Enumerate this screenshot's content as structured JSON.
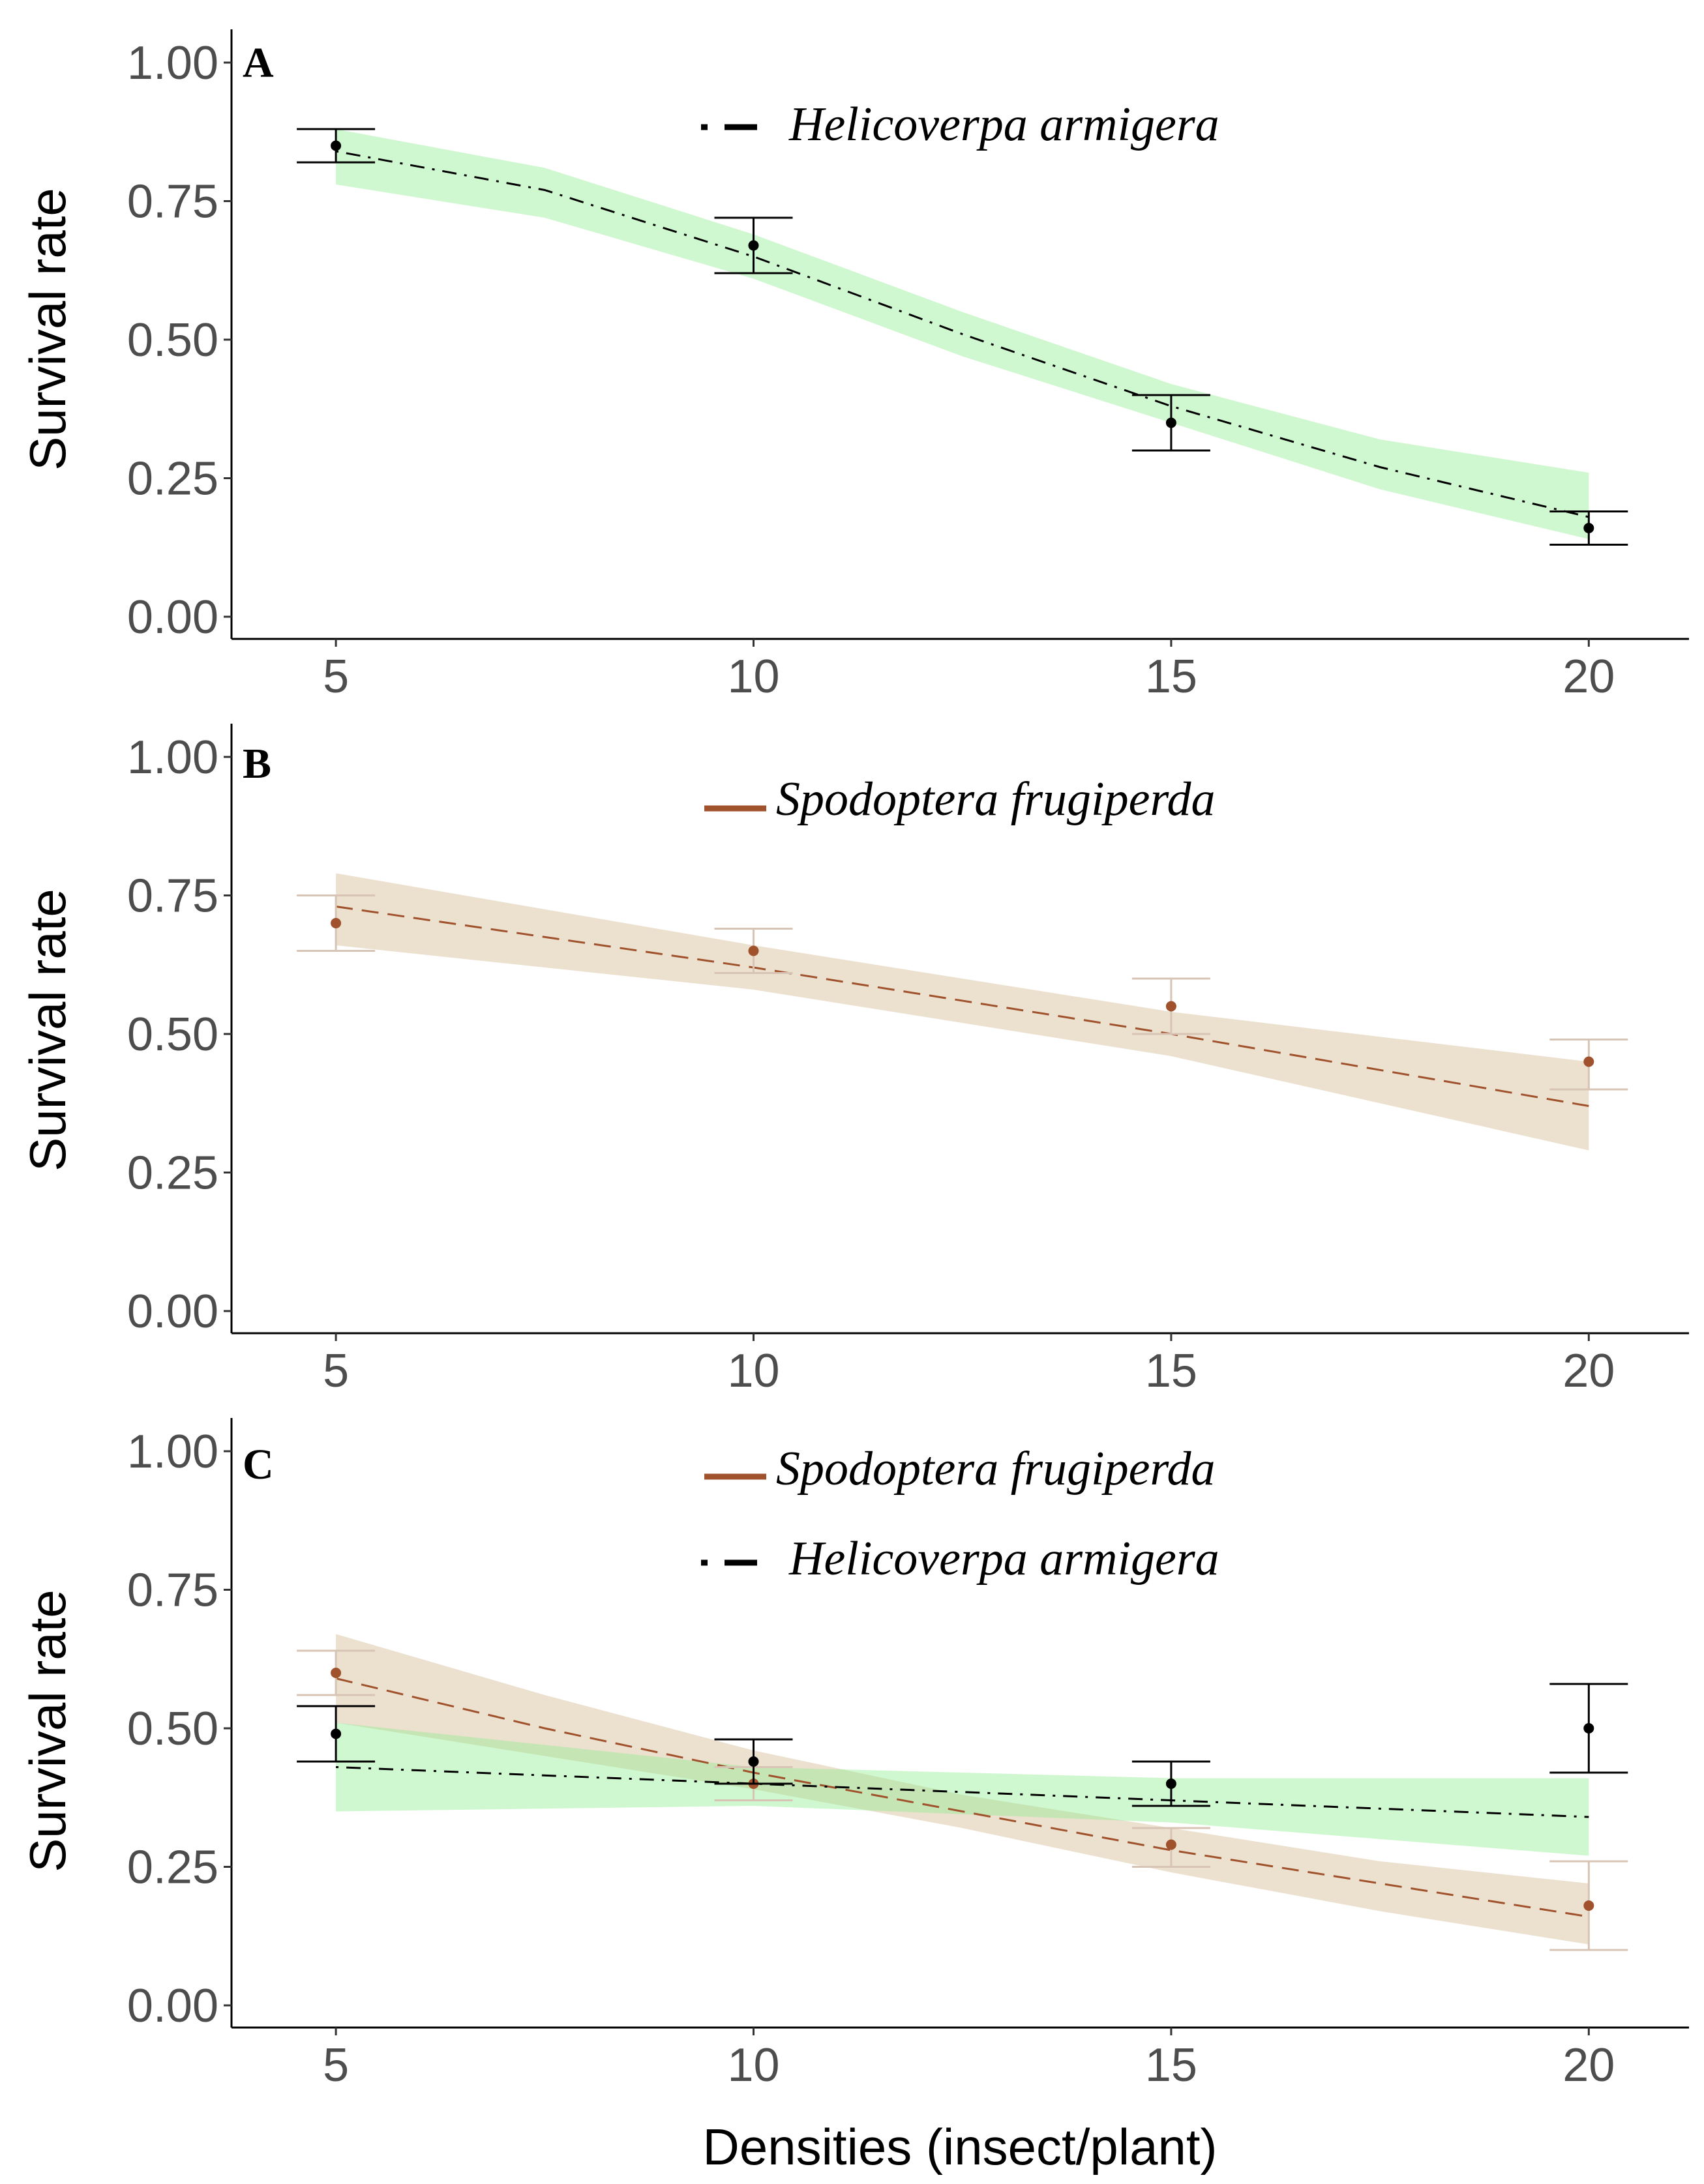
{
  "chart_data": [
    {
      "type": "line",
      "panel": "A",
      "xlabel": "",
      "ylabel": "Survival rate",
      "xlim": [
        3.75,
        21.2
      ],
      "ylim": [
        -0.04,
        1.06
      ],
      "xticks": [
        5,
        10,
        15,
        20
      ],
      "yticks": [
        0.0,
        0.25,
        0.5,
        0.75,
        1.0
      ],
      "xtick_labels": [
        "5",
        "10",
        "15",
        "20"
      ],
      "ytick_labels": [
        "0.00",
        "0.25",
        "0.50",
        "0.75",
        "1.00"
      ],
      "grid": false,
      "legend_position": "top-center",
      "series": [
        {
          "name": "Helicoverpa armigera",
          "color": "#000000",
          "band_color": "#90ee90",
          "line_style": "dotdash",
          "points": [
            {
              "x": 5,
              "y": 0.85,
              "lo": 0.82,
              "hi": 0.88
            },
            {
              "x": 10,
              "y": 0.67,
              "lo": 0.62,
              "hi": 0.72
            },
            {
              "x": 15,
              "y": 0.35,
              "lo": 0.3,
              "hi": 0.4
            },
            {
              "x": 20,
              "y": 0.16,
              "lo": 0.13,
              "hi": 0.19
            }
          ],
          "fit": [
            {
              "x": 5,
              "y": 0.84,
              "lo": 0.78,
              "hi": 0.88
            },
            {
              "x": 7.5,
              "y": 0.77,
              "lo": 0.72,
              "hi": 0.81
            },
            {
              "x": 10,
              "y": 0.65,
              "lo": 0.61,
              "hi": 0.69
            },
            {
              "x": 12.5,
              "y": 0.51,
              "lo": 0.47,
              "hi": 0.55
            },
            {
              "x": 15,
              "y": 0.38,
              "lo": 0.35,
              "hi": 0.42
            },
            {
              "x": 17.5,
              "y": 0.27,
              "lo": 0.23,
              "hi": 0.32
            },
            {
              "x": 20,
              "y": 0.18,
              "lo": 0.14,
              "hi": 0.26
            }
          ]
        }
      ]
    },
    {
      "type": "line",
      "panel": "B",
      "xlabel": "",
      "ylabel": "Survival rate",
      "xlim": [
        3.75,
        21.2
      ],
      "ylim": [
        -0.04,
        1.06
      ],
      "xticks": [
        5,
        10,
        15,
        20
      ],
      "yticks": [
        0.0,
        0.25,
        0.5,
        0.75,
        1.0
      ],
      "xtick_labels": [
        "5",
        "10",
        "15",
        "20"
      ],
      "ytick_labels": [
        "0.00",
        "0.25",
        "0.50",
        "0.75",
        "1.00"
      ],
      "grid": false,
      "legend_position": "top-center",
      "series": [
        {
          "name": "Spodoptera frugiperda",
          "color": "#a0522d",
          "band_color": "#d2b48c",
          "line_style": "dashed",
          "points": [
            {
              "x": 5,
              "y": 0.7,
              "lo": 0.65,
              "hi": 0.75
            },
            {
              "x": 10,
              "y": 0.65,
              "lo": 0.61,
              "hi": 0.69
            },
            {
              "x": 15,
              "y": 0.55,
              "lo": 0.5,
              "hi": 0.6
            },
            {
              "x": 20,
              "y": 0.45,
              "lo": 0.4,
              "hi": 0.49
            }
          ],
          "fit": [
            {
              "x": 5,
              "y": 0.73,
              "lo": 0.66,
              "hi": 0.79
            },
            {
              "x": 10,
              "y": 0.62,
              "lo": 0.58,
              "hi": 0.66
            },
            {
              "x": 15,
              "y": 0.5,
              "lo": 0.46,
              "hi": 0.54
            },
            {
              "x": 20,
              "y": 0.37,
              "lo": 0.29,
              "hi": 0.45
            }
          ]
        }
      ]
    },
    {
      "type": "line",
      "panel": "C",
      "xlabel": "Densities (insect/plant)",
      "ylabel": "Survival rate",
      "xlim": [
        3.75,
        21.2
      ],
      "ylim": [
        -0.04,
        1.06
      ],
      "xticks": [
        5,
        10,
        15,
        20
      ],
      "yticks": [
        0.0,
        0.25,
        0.5,
        0.75,
        1.0
      ],
      "xtick_labels": [
        "5",
        "10",
        "15",
        "20"
      ],
      "ytick_labels": [
        "0.00",
        "0.25",
        "0.50",
        "0.75",
        "1.00"
      ],
      "grid": false,
      "legend_position": "top-center",
      "series": [
        {
          "name": "Spodoptera frugiperda",
          "color": "#a0522d",
          "band_color": "#d2b48c",
          "line_style": "dashed",
          "points": [
            {
              "x": 5,
              "y": 0.6,
              "lo": 0.56,
              "hi": 0.64
            },
            {
              "x": 10,
              "y": 0.4,
              "lo": 0.37,
              "hi": 0.43
            },
            {
              "x": 15,
              "y": 0.29,
              "lo": 0.25,
              "hi": 0.32
            },
            {
              "x": 20,
              "y": 0.18,
              "lo": 0.1,
              "hi": 0.26
            }
          ],
          "fit": [
            {
              "x": 5,
              "y": 0.59,
              "lo": 0.51,
              "hi": 0.67
            },
            {
              "x": 7.5,
              "y": 0.5,
              "lo": 0.45,
              "hi": 0.56
            },
            {
              "x": 10,
              "y": 0.42,
              "lo": 0.39,
              "hi": 0.46
            },
            {
              "x": 12.5,
              "y": 0.35,
              "lo": 0.32,
              "hi": 0.38
            },
            {
              "x": 15,
              "y": 0.28,
              "lo": 0.24,
              "hi": 0.32
            },
            {
              "x": 17.5,
              "y": 0.22,
              "lo": 0.17,
              "hi": 0.26
            },
            {
              "x": 20,
              "y": 0.16,
              "lo": 0.11,
              "hi": 0.22
            }
          ]
        },
        {
          "name": "Helicoverpa armigera",
          "color": "#000000",
          "band_color": "#90ee90",
          "line_style": "dotdash",
          "points": [
            {
              "x": 5,
              "y": 0.49,
              "lo": 0.44,
              "hi": 0.54
            },
            {
              "x": 10,
              "y": 0.44,
              "lo": 0.4,
              "hi": 0.48
            },
            {
              "x": 15,
              "y": 0.4,
              "lo": 0.36,
              "hi": 0.44
            },
            {
              "x": 20,
              "y": 0.5,
              "lo": 0.42,
              "hi": 0.58
            }
          ],
          "fit": [
            {
              "x": 5,
              "y": 0.43,
              "lo": 0.35,
              "hi": 0.51
            },
            {
              "x": 10,
              "y": 0.4,
              "lo": 0.36,
              "hi": 0.43
            },
            {
              "x": 15,
              "y": 0.37,
              "lo": 0.33,
              "hi": 0.41
            },
            {
              "x": 20,
              "y": 0.34,
              "lo": 0.27,
              "hi": 0.41
            }
          ]
        }
      ]
    }
  ]
}
